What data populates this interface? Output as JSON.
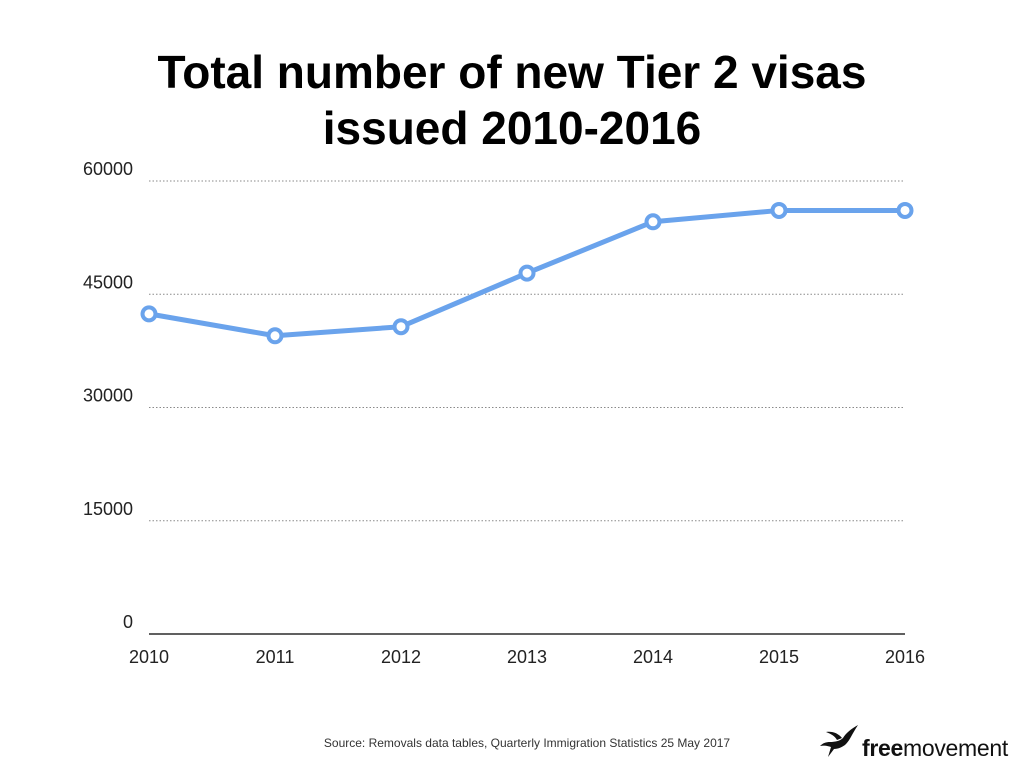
{
  "chart_data": {
    "type": "line",
    "title_lines": [
      "Total number of new Tier 2 visas",
      "issued 2010-2016"
    ],
    "x": [
      "2010",
      "2011",
      "2012",
      "2013",
      "2014",
      "2015",
      "2016"
    ],
    "series": [
      {
        "values": [
          42400,
          39500,
          40700,
          47800,
          54600,
          56100,
          56100
        ]
      }
    ],
    "xlabel": "",
    "ylabel": "",
    "ylim": [
      0,
      60000
    ],
    "yticks": [
      0,
      15000,
      30000,
      45000,
      60000
    ],
    "ytick_labels": [
      "0",
      "15000",
      "30000",
      "45000",
      "60000"
    ],
    "grid": "horizontal dotted",
    "line_color": "#6aa3ec",
    "marker": "hollow circle",
    "legend": "none"
  },
  "footer": {
    "source": "Source: Removals data tables, Quarterly Immigration Statistics 25 May 2017"
  },
  "brand": {
    "free": "free",
    "movement": "movement",
    "icon": "bird-icon"
  }
}
